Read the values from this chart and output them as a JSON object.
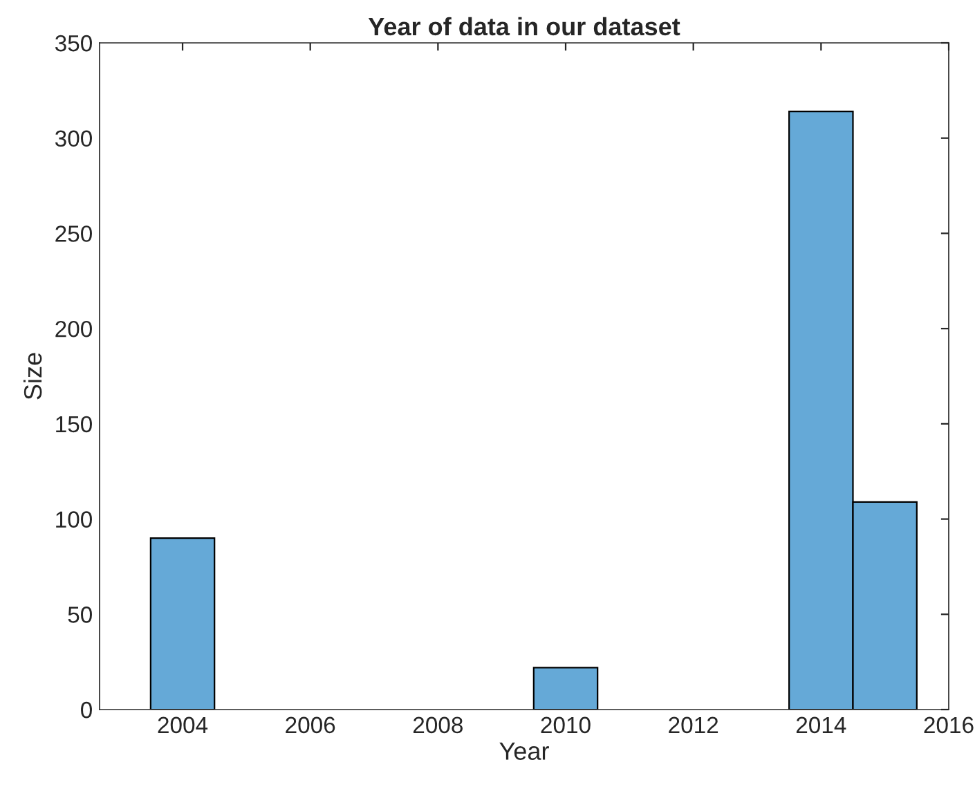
{
  "chart_data": {
    "type": "histogram",
    "title": "Year of data in our dataset",
    "xlabel": "Year",
    "ylabel": "Size",
    "bins": [
      2003.5,
      2004.5,
      2005.5,
      2006.5,
      2007.5,
      2008.5,
      2009.5,
      2010.5,
      2011.5,
      2012.5,
      2013.5,
      2014.5,
      2015.5
    ],
    "values": [
      90,
      0,
      0,
      0,
      0,
      0,
      22,
      0,
      0,
      0,
      314,
      109
    ],
    "color": "#65a9d7",
    "xlim": [
      2002.7,
      2016
    ],
    "xticks": [
      2004,
      2006,
      2008,
      2010,
      2012,
      2014,
      2016
    ],
    "ylim": [
      0,
      350
    ],
    "yticks": [
      0,
      50,
      100,
      150,
      200,
      250,
      300,
      350
    ],
    "grid": false
  }
}
